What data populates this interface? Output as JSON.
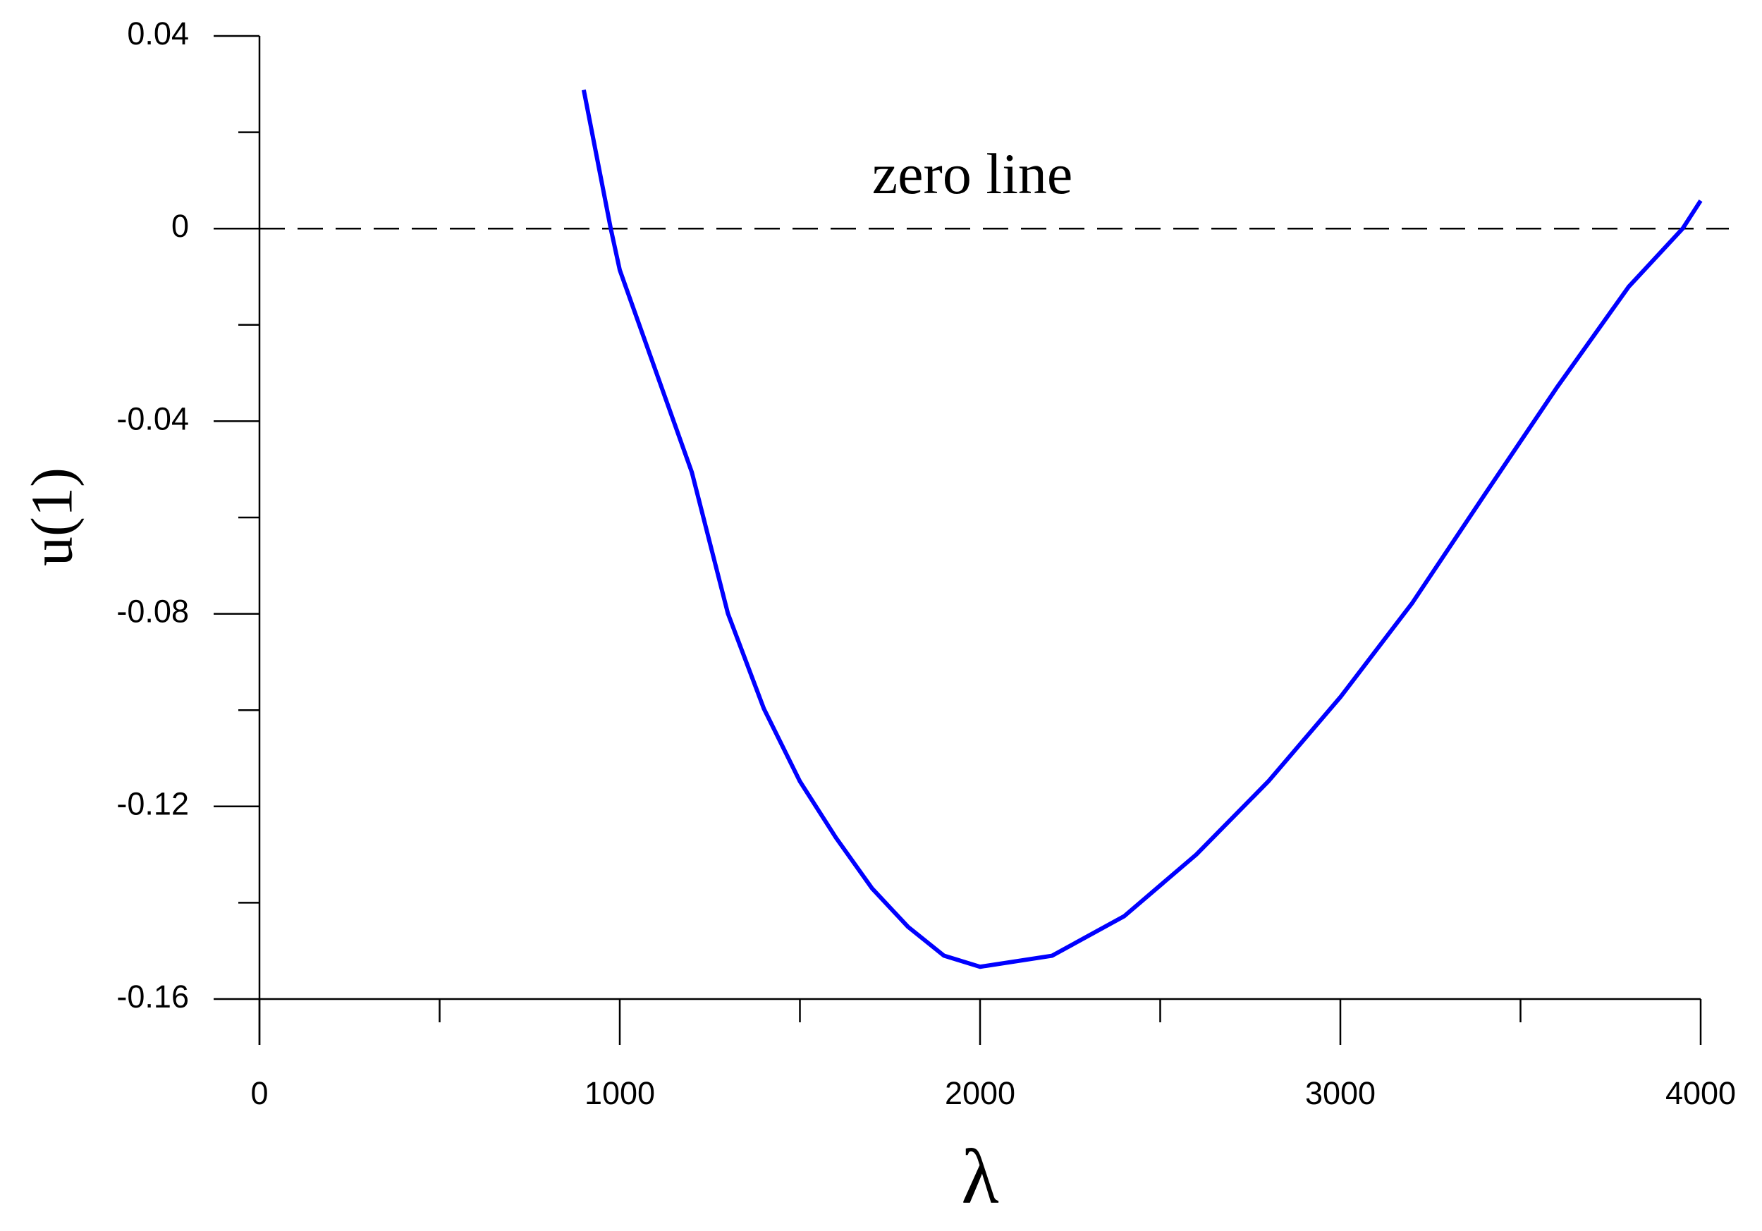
{
  "chart_data": {
    "type": "line",
    "x_label": "λ",
    "y_label": "u(1)",
    "xlim": [
      0,
      4000
    ],
    "ylim": [
      -0.16,
      0.04
    ],
    "xticks": [
      0,
      1000,
      2000,
      3000,
      4000
    ],
    "xminorticks": [
      500,
      1500,
      2500,
      3500
    ],
    "yticks": [
      0.04,
      0,
      -0.04,
      -0.08,
      -0.12,
      -0.16
    ],
    "yminorticks": [
      0.02,
      -0.02,
      -0.06,
      -0.1,
      -0.14
    ],
    "reference_line": {
      "label": "zero line",
      "value": 0
    },
    "x": [
      900,
      975,
      1000,
      1100,
      1200,
      1300,
      1400,
      1500,
      1600,
      1700,
      1800,
      1900,
      2000,
      2200,
      2400,
      2600,
      2800,
      3000,
      3200,
      3400,
      3600,
      3800,
      3950,
      4000
    ],
    "series": [
      {
        "color": "#0000ff",
        "values": [
          0.0288,
          0,
          -0.0086,
          -0.0296,
          -0.0506,
          -0.0799,
          -0.0997,
          -0.1148,
          -0.1265,
          -0.137,
          -0.145,
          -0.151,
          -0.1533,
          -0.151,
          -0.1428,
          -0.13,
          -0.1148,
          -0.0973,
          -0.0777,
          -0.0553,
          -0.0331,
          -0.0121,
          0,
          0.0058
        ]
      }
    ]
  }
}
